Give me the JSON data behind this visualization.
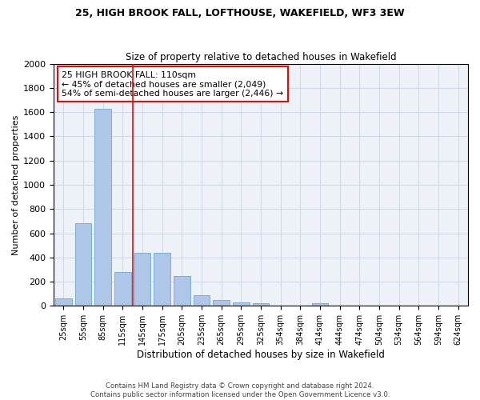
{
  "title1": "25, HIGH BROOK FALL, LOFTHOUSE, WAKEFIELD, WF3 3EW",
  "title2": "Size of property relative to detached houses in Wakefield",
  "xlabel": "Distribution of detached houses by size in Wakefield",
  "ylabel": "Number of detached properties",
  "footer1": "Contains HM Land Registry data © Crown copyright and database right 2024.",
  "footer2": "Contains public sector information licensed under the Open Government Licence v3.0.",
  "bar_labels": [
    "25sqm",
    "55sqm",
    "85sqm",
    "115sqm",
    "145sqm",
    "175sqm",
    "205sqm",
    "235sqm",
    "265sqm",
    "295sqm",
    "325sqm",
    "354sqm",
    "384sqm",
    "414sqm",
    "444sqm",
    "474sqm",
    "504sqm",
    "534sqm",
    "564sqm",
    "594sqm",
    "624sqm"
  ],
  "bar_values": [
    65,
    680,
    1630,
    280,
    440,
    440,
    250,
    90,
    50,
    30,
    20,
    0,
    0,
    20,
    0,
    0,
    0,
    0,
    0,
    0,
    0
  ],
  "bar_color": "#aec6e8",
  "bar_edge_color": "#7bafd4",
  "vline_color": "red",
  "annotation_text": "25 HIGH BROOK FALL: 110sqm\n← 45% of detached houses are smaller (2,049)\n54% of semi-detached houses are larger (2,446) →",
  "annotation_box_color": "white",
  "annotation_box_edge_color": "red",
  "ylim": [
    0,
    2000
  ],
  "yticks": [
    0,
    200,
    400,
    600,
    800,
    1000,
    1200,
    1400,
    1600,
    1800,
    2000
  ],
  "grid_color": "#d0d8e8",
  "bg_color": "#eef2f8",
  "fig_width": 6.0,
  "fig_height": 5.0,
  "dpi": 100
}
